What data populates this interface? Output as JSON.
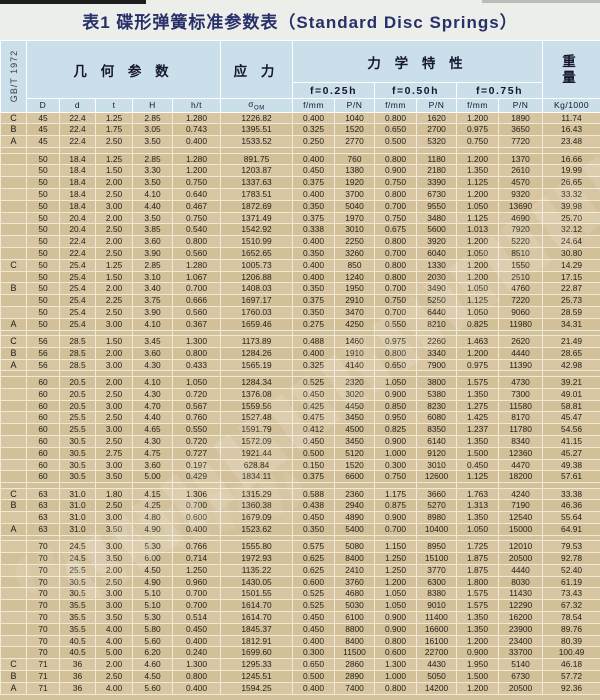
{
  "title": "表1 碟形弹簧标准参数表（Standard Disc Springs）",
  "standard": "GB/T 1972",
  "colors": {
    "header_bg": "#cbdfea",
    "body_bg": "#d7c6a1",
    "body_bg_alt": "#d2c099",
    "grid_line": "#f0e9d6",
    "title_color": "#283069",
    "text_color": "#211e18"
  },
  "header": {
    "group_geometry": "几 何 参 数",
    "group_stress": "应 力",
    "group_mech": "力 学 特 性",
    "group_weight_top": "重",
    "group_weight_bottom": "量",
    "sub_f025": "f=0.25h",
    "sub_f050": "f=0.50h",
    "sub_f075": "f=0.75h",
    "sigma_sub": "OM",
    "columns": [
      "D",
      "d",
      "t",
      "H",
      "h/t",
      "σ",
      "f/mm",
      "P/N",
      "f/mm",
      "P/N",
      "f/mm",
      "P/N",
      "Kg/1000"
    ]
  },
  "table": {
    "rows": [
      {
        "label": "C",
        "cells": [
          "45",
          "22.4",
          "1.25",
          "2.85",
          "1.280",
          "1226.82",
          "0.400",
          "1040",
          "0.800",
          "1620",
          "1.200",
          "1890",
          "11.74"
        ]
      },
      {
        "label": "B",
        "cells": [
          "45",
          "22.4",
          "1.75",
          "3.05",
          "0.743",
          "1395.51",
          "0.325",
          "1520",
          "0.650",
          "2700",
          "0.975",
          "3650",
          "16.43"
        ]
      },
      {
        "label": "A",
        "cells": [
          "45",
          "22.4",
          "2.50",
          "3.50",
          "0.400",
          "1533.52",
          "0.250",
          "2770",
          "0.500",
          "5320",
          "0.750",
          "7720",
          "23.48"
        ]
      },
      {
        "spacer": true
      },
      {
        "label": "",
        "cells": [
          "50",
          "18.4",
          "1.25",
          "2.85",
          "1.280",
          "891.75",
          "0.400",
          "760",
          "0.800",
          "1180",
          "1.200",
          "1370",
          "16.66"
        ]
      },
      {
        "label": "",
        "cells": [
          "50",
          "18.4",
          "1.50",
          "3.30",
          "1.200",
          "1203.87",
          "0.450",
          "1380",
          "0.900",
          "2180",
          "1.350",
          "2610",
          "19.99"
        ]
      },
      {
        "label": "",
        "cells": [
          "50",
          "18.4",
          "2.00",
          "3.50",
          "0.750",
          "1337.63",
          "0.375",
          "1920",
          "0.750",
          "3390",
          "1.125",
          "4570",
          "26.65"
        ]
      },
      {
        "label": "",
        "cells": [
          "50",
          "18.4",
          "2.50",
          "4.10",
          "0.640",
          "1783.51",
          "0.400",
          "3700",
          "0.800",
          "6730",
          "1.200",
          "9320",
          "33.32"
        ]
      },
      {
        "label": "",
        "cells": [
          "50",
          "18.4",
          "3.00",
          "4.40",
          "0.467",
          "1872.69",
          "0.350",
          "5040",
          "0.700",
          "9550",
          "1.050",
          "13690",
          "39.98"
        ]
      },
      {
        "label": "",
        "cells": [
          "50",
          "20.4",
          "2.00",
          "3.50",
          "0.750",
          "1371.49",
          "0.375",
          "1970",
          "0.750",
          "3480",
          "1.125",
          "4690",
          "25.70"
        ]
      },
      {
        "label": "",
        "cells": [
          "50",
          "20.4",
          "2.50",
          "3.85",
          "0.540",
          "1542.92",
          "0.338",
          "3010",
          "0.675",
          "5600",
          "1.013",
          "7920",
          "32.12"
        ]
      },
      {
        "label": "",
        "cells": [
          "50",
          "22.4",
          "2.00",
          "3.60",
          "0.800",
          "1510.99",
          "0.400",
          "2250",
          "0.800",
          "3920",
          "1.200",
          "5220",
          "24.64"
        ]
      },
      {
        "label": "",
        "cells": [
          "50",
          "22.4",
          "2.50",
          "3.90",
          "0.560",
          "1652.65",
          "0.350",
          "3260",
          "0.700",
          "6040",
          "1.050",
          "8510",
          "30.80"
        ]
      },
      {
        "label": "C",
        "cells": [
          "50",
          "25.4",
          "1.25",
          "2.85",
          "1.280",
          "1005.73",
          "0.400",
          "850",
          "0.800",
          "1330",
          "1.200",
          "1550",
          "14.29"
        ]
      },
      {
        "label": "",
        "cells": [
          "50",
          "25.4",
          "1.50",
          "3.10",
          "1.067",
          "1206.88",
          "0.400",
          "1240",
          "0.800",
          "2030",
          "1.200",
          "2510",
          "17.15"
        ]
      },
      {
        "label": "B",
        "cells": [
          "50",
          "25.4",
          "2.00",
          "3.40",
          "0.700",
          "1408.03",
          "0.350",
          "1950",
          "0.700",
          "3490",
          "1.050",
          "4760",
          "22.87"
        ]
      },
      {
        "label": "",
        "cells": [
          "50",
          "25.4",
          "2.25",
          "3.75",
          "0.666",
          "1697.17",
          "0.375",
          "2910",
          "0.750",
          "5250",
          "1.125",
          "7220",
          "25.73"
        ]
      },
      {
        "label": "",
        "cells": [
          "50",
          "25.4",
          "2.50",
          "3.90",
          "0.560",
          "1760.03",
          "0.350",
          "3470",
          "0.700",
          "6440",
          "1.050",
          "9060",
          "28.59"
        ]
      },
      {
        "label": "A",
        "cells": [
          "50",
          "25.4",
          "3.00",
          "4.10",
          "0.367",
          "1659.46",
          "0.275",
          "4250",
          "0.550",
          "8210",
          "0.825",
          "11980",
          "34.31"
        ]
      },
      {
        "spacer": true
      },
      {
        "label": "C",
        "cells": [
          "56",
          "28.5",
          "1.50",
          "3.45",
          "1.300",
          "1173.89",
          "0.488",
          "1460",
          "0.975",
          "2260",
          "1.463",
          "2620",
          "21.49"
        ]
      },
      {
        "label": "B",
        "cells": [
          "56",
          "28.5",
          "2.00",
          "3.60",
          "0.800",
          "1284.26",
          "0.400",
          "1910",
          "0.800",
          "3340",
          "1.200",
          "4440",
          "28.65"
        ]
      },
      {
        "label": "A",
        "cells": [
          "56",
          "28.5",
          "3.00",
          "4.30",
          "0.433",
          "1565.19",
          "0.325",
          "4140",
          "0.650",
          "7900",
          "0.975",
          "11390",
          "42.98"
        ]
      },
      {
        "spacer": true
      },
      {
        "label": "",
        "cells": [
          "60",
          "20.5",
          "2.00",
          "4.10",
          "1.050",
          "1284.34",
          "0.525",
          "2320",
          "1.050",
          "3800",
          "1.575",
          "4730",
          "39.21"
        ]
      },
      {
        "label": "",
        "cells": [
          "60",
          "20.5",
          "2.50",
          "4.30",
          "0.720",
          "1376.08",
          "0.450",
          "3020",
          "0.900",
          "5380",
          "1.350",
          "7300",
          "49.01"
        ]
      },
      {
        "label": "",
        "cells": [
          "60",
          "20.5",
          "3.00",
          "4.70",
          "0.567",
          "1559.56",
          "0.425",
          "4450",
          "0.850",
          "8230",
          "1.275",
          "11580",
          "58.81"
        ]
      },
      {
        "label": "",
        "cells": [
          "60",
          "25.5",
          "2.50",
          "4.40",
          "0.760",
          "1527.48",
          "0.475",
          "3450",
          "0.950",
          "6080",
          "1.425",
          "8170",
          "45.47"
        ]
      },
      {
        "label": "",
        "cells": [
          "60",
          "25.5",
          "3.00",
          "4.65",
          "0.550",
          "1591.79",
          "0.412",
          "4500",
          "0.825",
          "8350",
          "1.237",
          "11780",
          "54.56"
        ]
      },
      {
        "label": "",
        "cells": [
          "60",
          "30.5",
          "2.50",
          "4.30",
          "0.720",
          "1572.09",
          "0.450",
          "3450",
          "0.900",
          "6140",
          "1.350",
          "8340",
          "41.15"
        ]
      },
      {
        "label": "",
        "cells": [
          "60",
          "30.5",
          "2.75",
          "4.75",
          "0.727",
          "1921.44",
          "0.500",
          "5120",
          "1.000",
          "9120",
          "1.500",
          "12360",
          "45.27"
        ]
      },
      {
        "label": "",
        "cells": [
          "60",
          "30.5",
          "3.00",
          "3.60",
          "0.197",
          "628.84",
          "0.150",
          "1520",
          "0.300",
          "3010",
          "0.450",
          "4470",
          "49.38"
        ]
      },
      {
        "label": "",
        "cells": [
          "60",
          "30.5",
          "3.50",
          "5.00",
          "0.429",
          "1834.11",
          "0.375",
          "6600",
          "0.750",
          "12600",
          "1.125",
          "18200",
          "57.61"
        ]
      },
      {
        "spacer": true
      },
      {
        "label": "C",
        "cells": [
          "63",
          "31.0",
          "1.80",
          "4.15",
          "1.306",
          "1315.29",
          "0.588",
          "2360",
          "1.175",
          "3660",
          "1.763",
          "4240",
          "33.38"
        ]
      },
      {
        "label": "B",
        "cells": [
          "63",
          "31.0",
          "2.50",
          "4.25",
          "0.700",
          "1360.38",
          "0.438",
          "2940",
          "0.875",
          "5270",
          "1.313",
          "7190",
          "46.36"
        ]
      },
      {
        "label": "",
        "cells": [
          "63",
          "31.0",
          "3.00",
          "4.80",
          "0.600",
          "1679.09",
          "0.450",
          "4890",
          "0.900",
          "8980",
          "1.350",
          "12540",
          "55.64"
        ]
      },
      {
        "label": "A",
        "cells": [
          "63",
          "31.0",
          "3.50",
          "4.90",
          "0.400",
          "1523.62",
          "0.350",
          "5400",
          "0.700",
          "10400",
          "1.050",
          "15000",
          "64.91"
        ]
      },
      {
        "spacer": true
      },
      {
        "label": "",
        "cells": [
          "70",
          "24.5",
          "3.00",
          "5.30",
          "0.766",
          "1555.80",
          "0.575",
          "5080",
          "1.150",
          "8950",
          "1.725",
          "12010",
          "79.53"
        ]
      },
      {
        "label": "",
        "cells": [
          "70",
          "24.5",
          "3.50",
          "6.00",
          "0.714",
          "1972.93",
          "0.625",
          "8400",
          "1.250",
          "15100",
          "1.875",
          "20500",
          "92.78"
        ]
      },
      {
        "label": "",
        "cells": [
          "70",
          "25.5",
          "2.00",
          "4.50",
          "1.250",
          "1135.22",
          "0.625",
          "2410",
          "1.250",
          "3770",
          "1.875",
          "4440",
          "52.40"
        ]
      },
      {
        "label": "",
        "cells": [
          "70",
          "30.5",
          "2.50",
          "4.90",
          "0.960",
          "1430.05",
          "0.600",
          "3760",
          "1.200",
          "6300",
          "1.800",
          "8030",
          "61.19"
        ]
      },
      {
        "label": "",
        "cells": [
          "70",
          "30.5",
          "3.00",
          "5.10",
          "0.700",
          "1501.55",
          "0.525",
          "4680",
          "1.050",
          "8380",
          "1.575",
          "11430",
          "73.43"
        ]
      },
      {
        "label": "",
        "cells": [
          "70",
          "35.5",
          "3.00",
          "5.10",
          "0.700",
          "1614.70",
          "0.525",
          "5030",
          "1.050",
          "9010",
          "1.575",
          "12290",
          "67.32"
        ]
      },
      {
        "label": "",
        "cells": [
          "70",
          "35.5",
          "3.50",
          "5.30",
          "0.514",
          "1614.70",
          "0.450",
          "6100",
          "0.900",
          "11400",
          "1.350",
          "16200",
          "78.54"
        ]
      },
      {
        "label": "",
        "cells": [
          "70",
          "35.5",
          "4.00",
          "5.80",
          "0.450",
          "1845.37",
          "0.450",
          "8800",
          "0.900",
          "16600",
          "1.350",
          "23900",
          "89.76"
        ]
      },
      {
        "label": "",
        "cells": [
          "70",
          "40.5",
          "4.00",
          "5.60",
          "0.400",
          "1812.91",
          "0.400",
          "8400",
          "0.800",
          "16100",
          "1.200",
          "23400",
          "80.39"
        ]
      },
      {
        "label": "",
        "cells": [
          "70",
          "40.5",
          "5.00",
          "6.20",
          "0.240",
          "1699.60",
          "0.300",
          "11500",
          "0.600",
          "22700",
          "0.900",
          "33700",
          "100.49"
        ]
      },
      {
        "label": "C",
        "cells": [
          "71",
          "36",
          "2.00",
          "4.60",
          "1.300",
          "1295.33",
          "0.650",
          "2860",
          "1.300",
          "4430",
          "1.950",
          "5140",
          "46.18"
        ]
      },
      {
        "label": "B",
        "cells": [
          "71",
          "36",
          "2.50",
          "4.50",
          "0.800",
          "1245.51",
          "0.500",
          "2890",
          "1.000",
          "5050",
          "1.500",
          "6730",
          "57.72"
        ]
      },
      {
        "label": "A",
        "cells": [
          "71",
          "36",
          "4.00",
          "5.60",
          "0.400",
          "1594.25",
          "0.400",
          "7400",
          "0.800",
          "14200",
          "1.200",
          "20500",
          "92.36"
        ]
      }
    ]
  }
}
